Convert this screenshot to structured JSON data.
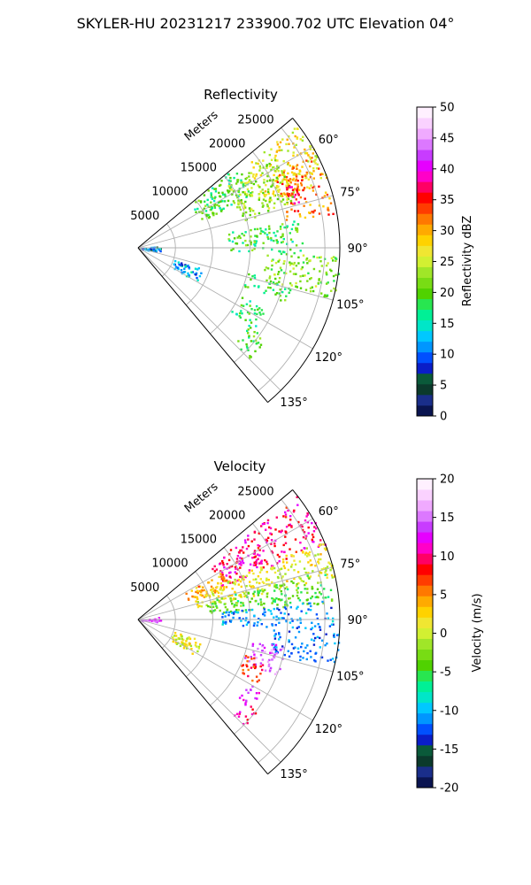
{
  "suptitle": "SKYLER-HU  20231217  233900.702 UTC Elevation 04°",
  "panels": [
    {
      "title": "Reflectivity",
      "range_axis_label": "Meters",
      "range_ticks": [
        "5000",
        "10000",
        "15000",
        "20000",
        "25000"
      ],
      "range_values": [
        5000,
        10000,
        15000,
        20000,
        25000
      ],
      "angle_ticks": [
        "60°",
        "75°",
        "90°",
        "105°",
        "120°",
        "135°"
      ],
      "angle_values": [
        60,
        75,
        90,
        105,
        120,
        135
      ],
      "colorbar": {
        "label": "Reflectivity dBZ",
        "min": 0,
        "max": 50,
        "ticks": [
          "0",
          "5",
          "10",
          "15",
          "20",
          "25",
          "30",
          "35",
          "40",
          "45",
          "50"
        ],
        "colormap": [
          "#0a1450",
          "#1a2e8a",
          "#0b3a2c",
          "#0a5a3a",
          "#0a1ec8",
          "#0050ff",
          "#0096ff",
          "#00c8ff",
          "#00e6c8",
          "#00f096",
          "#28e650",
          "#50d200",
          "#78dc14",
          "#a0e628",
          "#d2f032",
          "#f0e632",
          "#ffd200",
          "#ffaa00",
          "#ff7800",
          "#ff3c00",
          "#ff0000",
          "#ff0064",
          "#ff00c8",
          "#e600ff",
          "#c83cff",
          "#dc78ff",
          "#f0aaff",
          "#fad2ff",
          "#fff0ff"
        ]
      }
    },
    {
      "title": "Velocity",
      "range_axis_label": "Meters",
      "range_ticks": [
        "5000",
        "10000",
        "15000",
        "20000",
        "25000"
      ],
      "range_values": [
        5000,
        10000,
        15000,
        20000,
        25000
      ],
      "angle_ticks": [
        "60°",
        "75°",
        "90°",
        "105°",
        "120°",
        "135°"
      ],
      "angle_values": [
        60,
        75,
        90,
        105,
        120,
        135
      ],
      "colorbar": {
        "label": "Velocity (m/s)",
        "min": -20,
        "max": 20,
        "ticks": [
          "-20",
          "-15",
          "-10",
          "-5",
          "0",
          "5",
          "10",
          "15",
          "20"
        ],
        "colormap": [
          "#0a1450",
          "#1a2e8a",
          "#0b3a2c",
          "#0a5a3a",
          "#0a1ec8",
          "#0050ff",
          "#0096ff",
          "#00c8ff",
          "#00e6c8",
          "#00f096",
          "#28e650",
          "#50d200",
          "#78dc14",
          "#a0e628",
          "#d2f032",
          "#f0e632",
          "#ffd200",
          "#ffaa00",
          "#ff7800",
          "#ff3c00",
          "#ff0000",
          "#ff0064",
          "#ff00c8",
          "#e600ff",
          "#c83cff",
          "#dc78ff",
          "#f0aaff",
          "#fad2ff",
          "#fff0ff"
        ]
      }
    }
  ],
  "chart_data": [
    {
      "type": "heatmap",
      "projection": "polar-sector",
      "title": "Reflectivity",
      "units": "dBZ",
      "azimuth_range_deg": [
        50,
        140
      ],
      "range_max_m": 27000,
      "echo_regions": [
        {
          "az": [
            52,
            70
          ],
          "r": [
            18000,
            27000
          ],
          "value": 27
        },
        {
          "az": [
            62,
            80
          ],
          "r": [
            20000,
            26500
          ],
          "value": 32
        },
        {
          "az": [
            66,
            74
          ],
          "r": [
            21000,
            24000
          ],
          "value": 36
        },
        {
          "az": [
            48,
            66
          ],
          "r": [
            9000,
            17000
          ],
          "value": 19
        },
        {
          "az": [
            55,
            75
          ],
          "r": [
            14000,
            22000
          ],
          "value": 23
        },
        {
          "az": [
            80,
            92
          ],
          "r": [
            12000,
            22000
          ],
          "value": 19
        },
        {
          "az": [
            92,
            105
          ],
          "r": [
            17000,
            27000
          ],
          "value": 22
        },
        {
          "az": [
            103,
            110
          ],
          "r": [
            15000,
            21000
          ],
          "value": 19
        },
        {
          "az": [
            115,
            125
          ],
          "r": [
            15000,
            19000
          ],
          "value": 18
        },
        {
          "az": [
            125,
            135
          ],
          "r": [
            18000,
            21000
          ],
          "value": 20
        },
        {
          "az": [
            108,
            120
          ],
          "r": [
            5000,
            9000
          ],
          "value": 12
        },
        {
          "az": [
            85,
            100
          ],
          "r": [
            300,
            3000
          ],
          "value": 10
        }
      ]
    },
    {
      "type": "heatmap",
      "projection": "polar-sector",
      "title": "Velocity",
      "units": "m/s",
      "azimuth_range_deg": [
        50,
        140
      ],
      "range_max_m": 27000,
      "echo_regions": [
        {
          "az": [
            52,
            68
          ],
          "r": [
            12000,
            27000
          ],
          "value": 10
        },
        {
          "az": [
            60,
            70
          ],
          "r": [
            7000,
            13000
          ],
          "value": 4
        },
        {
          "az": [
            66,
            78
          ],
          "r": [
            8000,
            27000
          ],
          "value": 1
        },
        {
          "az": [
            75,
            85
          ],
          "r": [
            9000,
            26000
          ],
          "value": -4
        },
        {
          "az": [
            84,
            93
          ],
          "r": [
            11000,
            26000
          ],
          "value": -11
        },
        {
          "az": [
            94,
            104
          ],
          "r": [
            18000,
            27000
          ],
          "value": -12
        },
        {
          "az": [
            100,
            112
          ],
          "r": [
            15000,
            20000
          ],
          "value": 15
        },
        {
          "az": [
            108,
            118
          ],
          "r": [
            15000,
            18000
          ],
          "value": 8
        },
        {
          "az": [
            120,
            128
          ],
          "r": [
            17000,
            19000
          ],
          "value": 12
        },
        {
          "az": [
            128,
            135
          ],
          "r": [
            18000,
            20000
          ],
          "value": 10
        },
        {
          "az": [
            108,
            122
          ],
          "r": [
            5000,
            9000
          ],
          "value": 1
        },
        {
          "az": [
            82,
            96
          ],
          "r": [
            200,
            3000
          ],
          "value": 14
        }
      ]
    }
  ]
}
